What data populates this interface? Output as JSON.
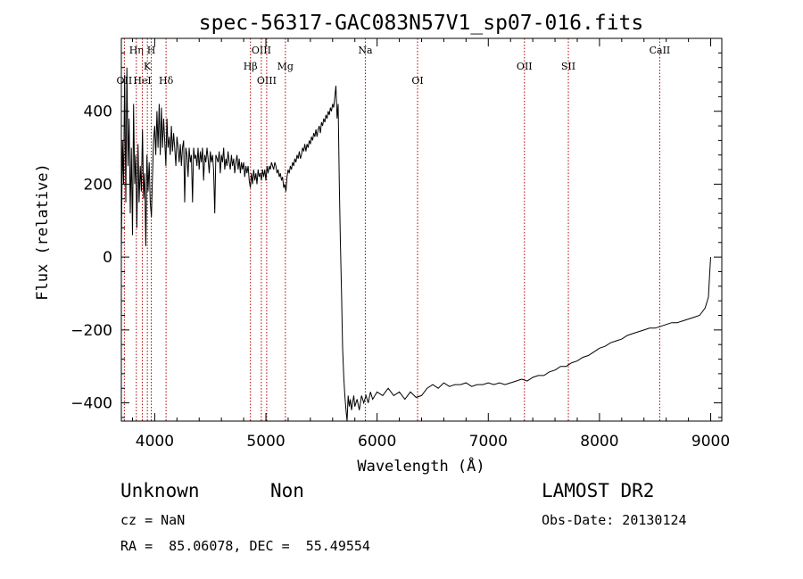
{
  "chart_data": {
    "type": "line",
    "title": "spec-56317-GAC083N57V1_sp07-016.fits",
    "xlabel": "Wavelength (Å)",
    "ylabel": "Flux (relative)",
    "xlim": [
      3700,
      9100
    ],
    "ylim": [
      -450,
      600
    ],
    "xticks": [
      4000,
      5000,
      6000,
      7000,
      8000,
      9000
    ],
    "yticks": [
      -400,
      -200,
      0,
      200,
      400
    ],
    "ytick_labels": [
      "−400",
      "−200",
      "0",
      "200",
      "400"
    ],
    "series": [
      {
        "points": [
          [
            3700,
            10
          ],
          [
            3710,
            320
          ],
          [
            3720,
            200
          ],
          [
            3730,
            500
          ],
          [
            3740,
            150
          ],
          [
            3750,
            520
          ],
          [
            3760,
            250
          ],
          [
            3770,
            380
          ],
          [
            3780,
            120
          ],
          [
            3790,
            300
          ],
          [
            3800,
            60
          ],
          [
            3810,
            420
          ],
          [
            3820,
            200
          ],
          [
            3830,
            280
          ],
          [
            3840,
            80
          ],
          [
            3850,
            310
          ],
          [
            3860,
            150
          ],
          [
            3870,
            250
          ],
          [
            3880,
            180
          ],
          [
            3890,
            350
          ],
          [
            3900,
            160
          ],
          [
            3910,
            230
          ],
          [
            3920,
            30
          ],
          [
            3930,
            280
          ],
          [
            3940,
            180
          ],
          [
            3950,
            260
          ],
          [
            3960,
            150
          ],
          [
            3970,
            110
          ],
          [
            3980,
            220
          ],
          [
            3990,
            320
          ],
          [
            4000,
            360
          ],
          [
            4010,
            280
          ],
          [
            4020,
            400
          ],
          [
            4030,
            300
          ],
          [
            4040,
            420
          ],
          [
            4050,
            280
          ],
          [
            4060,
            410
          ],
          [
            4070,
            300
          ],
          [
            4080,
            380
          ],
          [
            4090,
            320
          ],
          [
            4100,
            250
          ],
          [
            4110,
            380
          ],
          [
            4120,
            300
          ],
          [
            4130,
            330
          ],
          [
            4140,
            280
          ],
          [
            4150,
            360
          ],
          [
            4160,
            290
          ],
          [
            4170,
            340
          ],
          [
            4180,
            300
          ],
          [
            4190,
            250
          ],
          [
            4200,
            330
          ],
          [
            4210,
            300
          ],
          [
            4220,
            260
          ],
          [
            4230,
            310
          ],
          [
            4240,
            250
          ],
          [
            4250,
            300
          ],
          [
            4260,
            320
          ],
          [
            4270,
            150
          ],
          [
            4280,
            300
          ],
          [
            4290,
            280
          ],
          [
            4300,
            220
          ],
          [
            4310,
            300
          ],
          [
            4320,
            260
          ],
          [
            4330,
            280
          ],
          [
            4340,
            150
          ],
          [
            4350,
            300
          ],
          [
            4360,
            270
          ],
          [
            4370,
            280
          ],
          [
            4380,
            250
          ],
          [
            4390,
            300
          ],
          [
            4400,
            240
          ],
          [
            4410,
            290
          ],
          [
            4420,
            260
          ],
          [
            4430,
            300
          ],
          [
            4440,
            210
          ],
          [
            4450,
            280
          ],
          [
            4460,
            260
          ],
          [
            4470,
            300
          ],
          [
            4480,
            270
          ],
          [
            4490,
            230
          ],
          [
            4500,
            290
          ],
          [
            4510,
            260
          ],
          [
            4520,
            280
          ],
          [
            4530,
            240
          ],
          [
            4540,
            120
          ],
          [
            4550,
            280
          ],
          [
            4560,
            270
          ],
          [
            4570,
            260
          ],
          [
            4580,
            290
          ],
          [
            4590,
            230
          ],
          [
            4600,
            280
          ],
          [
            4610,
            260
          ],
          [
            4620,
            300
          ],
          [
            4630,
            240
          ],
          [
            4640,
            270
          ],
          [
            4650,
            250
          ],
          [
            4660,
            290
          ],
          [
            4670,
            260
          ],
          [
            4680,
            240
          ],
          [
            4690,
            280
          ],
          [
            4700,
            250
          ],
          [
            4710,
            270
          ],
          [
            4720,
            230
          ],
          [
            4730,
            260
          ],
          [
            4740,
            280
          ],
          [
            4750,
            240
          ],
          [
            4760,
            270
          ],
          [
            4770,
            230
          ],
          [
            4780,
            260
          ],
          [
            4790,
            240
          ],
          [
            4800,
            260
          ],
          [
            4810,
            220
          ],
          [
            4820,
            250
          ],
          [
            4830,
            230
          ],
          [
            4840,
            250
          ],
          [
            4850,
            210
          ],
          [
            4860,
            190
          ],
          [
            4870,
            230
          ],
          [
            4880,
            200
          ],
          [
            4890,
            240
          ],
          [
            4900,
            210
          ],
          [
            4910,
            230
          ],
          [
            4920,
            200
          ],
          [
            4930,
            240
          ],
          [
            4940,
            220
          ],
          [
            4950,
            230
          ],
          [
            4960,
            210
          ],
          [
            4970,
            240
          ],
          [
            4980,
            220
          ],
          [
            4990,
            240
          ],
          [
            5000,
            210
          ],
          [
            5010,
            250
          ],
          [
            5020,
            230
          ],
          [
            5030,
            250
          ],
          [
            5040,
            240
          ],
          [
            5050,
            260
          ],
          [
            5060,
            250
          ],
          [
            5070,
            240
          ],
          [
            5080,
            260
          ],
          [
            5090,
            250
          ],
          [
            5100,
            230
          ],
          [
            5110,
            240
          ],
          [
            5120,
            220
          ],
          [
            5130,
            230
          ],
          [
            5140,
            210
          ],
          [
            5150,
            220
          ],
          [
            5160,
            190
          ],
          [
            5170,
            200
          ],
          [
            5180,
            180
          ],
          [
            5190,
            220
          ],
          [
            5200,
            240
          ],
          [
            5210,
            230
          ],
          [
            5220,
            250
          ],
          [
            5230,
            240
          ],
          [
            5240,
            260
          ],
          [
            5250,
            250
          ],
          [
            5260,
            270
          ],
          [
            5270,
            260
          ],
          [
            5280,
            280
          ],
          [
            5290,
            270
          ],
          [
            5300,
            290
          ],
          [
            5310,
            270
          ],
          [
            5320,
            280
          ],
          [
            5330,
            300
          ],
          [
            5340,
            290
          ],
          [
            5350,
            310
          ],
          [
            5360,
            290
          ],
          [
            5370,
            310
          ],
          [
            5380,
            300
          ],
          [
            5390,
            320
          ],
          [
            5400,
            310
          ],
          [
            5410,
            330
          ],
          [
            5420,
            320
          ],
          [
            5430,
            340
          ],
          [
            5440,
            330
          ],
          [
            5450,
            350
          ],
          [
            5460,
            330
          ],
          [
            5470,
            350
          ],
          [
            5480,
            360
          ],
          [
            5490,
            340
          ],
          [
            5500,
            370
          ],
          [
            5510,
            360
          ],
          [
            5520,
            380
          ],
          [
            5530,
            370
          ],
          [
            5540,
            390
          ],
          [
            5550,
            380
          ],
          [
            5560,
            400
          ],
          [
            5570,
            390
          ],
          [
            5580,
            410
          ],
          [
            5590,
            400
          ],
          [
            5600,
            420
          ],
          [
            5610,
            410
          ],
          [
            5620,
            440
          ],
          [
            5630,
            470
          ],
          [
            5640,
            380
          ],
          [
            5650,
            420
          ],
          [
            5660,
            200
          ],
          [
            5670,
            40
          ],
          [
            5680,
            -100
          ],
          [
            5690,
            -250
          ],
          [
            5700,
            -330
          ],
          [
            5710,
            -380
          ],
          [
            5720,
            -420
          ],
          [
            5730,
            -450
          ],
          [
            5740,
            -380
          ],
          [
            5750,
            -410
          ],
          [
            5760,
            -390
          ],
          [
            5770,
            -420
          ],
          [
            5780,
            -400
          ],
          [
            5790,
            -380
          ],
          [
            5800,
            -410
          ],
          [
            5820,
            -390
          ],
          [
            5840,
            -420
          ],
          [
            5860,
            -380
          ],
          [
            5880,
            -400
          ],
          [
            5900,
            -380
          ],
          [
            5920,
            -400
          ],
          [
            5940,
            -370
          ],
          [
            5960,
            -390
          ],
          [
            5980,
            -380
          ],
          [
            6000,
            -370
          ],
          [
            6050,
            -380
          ],
          [
            6100,
            -360
          ],
          [
            6150,
            -380
          ],
          [
            6200,
            -370
          ],
          [
            6250,
            -390
          ],
          [
            6300,
            -370
          ],
          [
            6350,
            -385
          ],
          [
            6400,
            -380
          ],
          [
            6450,
            -360
          ],
          [
            6500,
            -350
          ],
          [
            6550,
            -360
          ],
          [
            6600,
            -345
          ],
          [
            6650,
            -355
          ],
          [
            6700,
            -350
          ],
          [
            6750,
            -350
          ],
          [
            6800,
            -345
          ],
          [
            6850,
            -355
          ],
          [
            6900,
            -350
          ],
          [
            6950,
            -350
          ],
          [
            7000,
            -345
          ],
          [
            7050,
            -350
          ],
          [
            7100,
            -345
          ],
          [
            7150,
            -350
          ],
          [
            7200,
            -345
          ],
          [
            7250,
            -340
          ],
          [
            7300,
            -335
          ],
          [
            7350,
            -340
          ],
          [
            7400,
            -330
          ],
          [
            7450,
            -325
          ],
          [
            7500,
            -325
          ],
          [
            7550,
            -315
          ],
          [
            7600,
            -310
          ],
          [
            7650,
            -300
          ],
          [
            7700,
            -300
          ],
          [
            7750,
            -290
          ],
          [
            7800,
            -285
          ],
          [
            7850,
            -275
          ],
          [
            7900,
            -270
          ],
          [
            7950,
            -260
          ],
          [
            8000,
            -250
          ],
          [
            8050,
            -245
          ],
          [
            8100,
            -235
          ],
          [
            8150,
            -230
          ],
          [
            8200,
            -225
          ],
          [
            8250,
            -215
          ],
          [
            8300,
            -210
          ],
          [
            8350,
            -205
          ],
          [
            8400,
            -200
          ],
          [
            8450,
            -195
          ],
          [
            8500,
            -195
          ],
          [
            8550,
            -190
          ],
          [
            8600,
            -185
          ],
          [
            8650,
            -180
          ],
          [
            8700,
            -180
          ],
          [
            8750,
            -175
          ],
          [
            8800,
            -170
          ],
          [
            8850,
            -165
          ],
          [
            8900,
            -160
          ],
          [
            8950,
            -140
          ],
          [
            8980,
            -110
          ],
          [
            8990,
            -50
          ],
          [
            9000,
            0
          ]
        ]
      }
    ],
    "lines": [
      {
        "label": "OII",
        "wave": 3727,
        "row": 3
      },
      {
        "label": "Hη",
        "wave": 3835,
        "row": 1
      },
      {
        "label": "HeI",
        "wave": 3889,
        "row": 3
      },
      {
        "label": "K",
        "wave": 3934,
        "row": 2
      },
      {
        "label": "H",
        "wave": 3969,
        "row": 1
      },
      {
        "label": "Hδ",
        "wave": 4102,
        "row": 3
      },
      {
        "label": "Hβ",
        "wave": 4861,
        "row": 2
      },
      {
        "label": "OIII",
        "wave": 4959,
        "row": 1
      },
      {
        "label": "OIII",
        "wave": 5007,
        "row": 3
      },
      {
        "label": "Mg",
        "wave": 5175,
        "row": 2
      },
      {
        "label": "Na",
        "wave": 5894,
        "row": 1
      },
      {
        "label": "OI",
        "wave": 6364,
        "row": 3
      },
      {
        "label": "OII",
        "wave": 7325,
        "row": 2
      },
      {
        "label": "SII",
        "wave": 7720,
        "row": 2
      },
      {
        "label": "CaII",
        "wave": 8542,
        "row": 1
      }
    ],
    "grid": false
  },
  "info": {
    "class": "Unknown",
    "subclass": "Non",
    "cz": "cz = NaN",
    "radec": "RA =  85.06078, DEC =  55.49554",
    "survey": "LAMOST DR2",
    "obsdate": "Obs-Date: 20130124"
  },
  "colors": {
    "line_marker": "#b00000",
    "spectrum": "#000000"
  }
}
